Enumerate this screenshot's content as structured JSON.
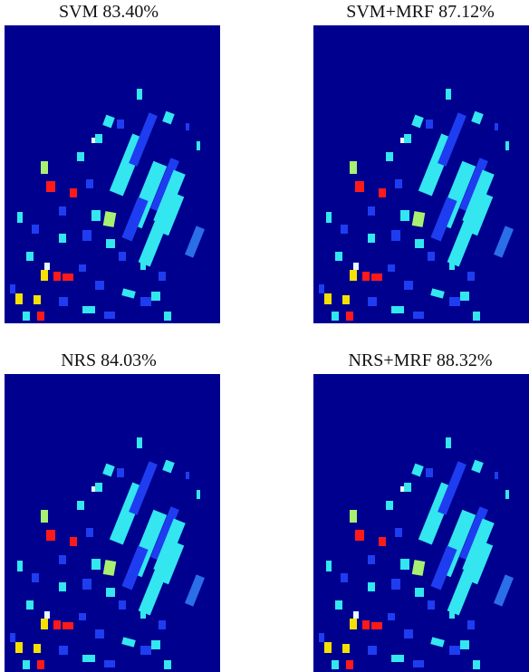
{
  "panels": [
    {
      "title": "SVM 83.40%"
    },
    {
      "title": "SVM+MRF 87.12%"
    },
    {
      "title": "NRS 84.03%"
    },
    {
      "title": "NRS+MRF 88.32%"
    }
  ]
}
